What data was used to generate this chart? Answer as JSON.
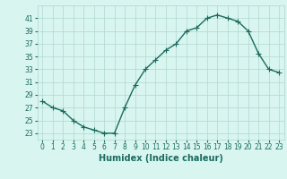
{
  "x": [
    0,
    1,
    2,
    3,
    4,
    5,
    6,
    7,
    8,
    9,
    10,
    11,
    12,
    13,
    14,
    15,
    16,
    17,
    18,
    19,
    20,
    21,
    22,
    23
  ],
  "y": [
    28,
    27,
    26.5,
    25,
    24,
    23.5,
    23,
    23,
    27,
    30.5,
    33,
    34.5,
    36,
    37,
    39,
    39.5,
    41,
    41.5,
    41,
    40.5,
    39,
    35.5,
    33,
    32.5
  ],
  "line_color": "#1a6b5e",
  "marker": "+",
  "marker_size": 4,
  "background_color": "#d8f5f0",
  "grid_color": "#b0d8d0",
  "xlabel": "Humidex (Indice chaleur)",
  "xlim": [
    -0.5,
    23.5
  ],
  "ylim": [
    22,
    43
  ],
  "yticks": [
    23,
    25,
    27,
    29,
    31,
    33,
    35,
    37,
    39,
    41
  ],
  "xticks": [
    0,
    1,
    2,
    3,
    4,
    5,
    6,
    7,
    8,
    9,
    10,
    11,
    12,
    13,
    14,
    15,
    16,
    17,
    18,
    19,
    20,
    21,
    22,
    23
  ],
  "tick_fontsize": 5.5,
  "xlabel_fontsize": 7,
  "linewidth": 1.0
}
